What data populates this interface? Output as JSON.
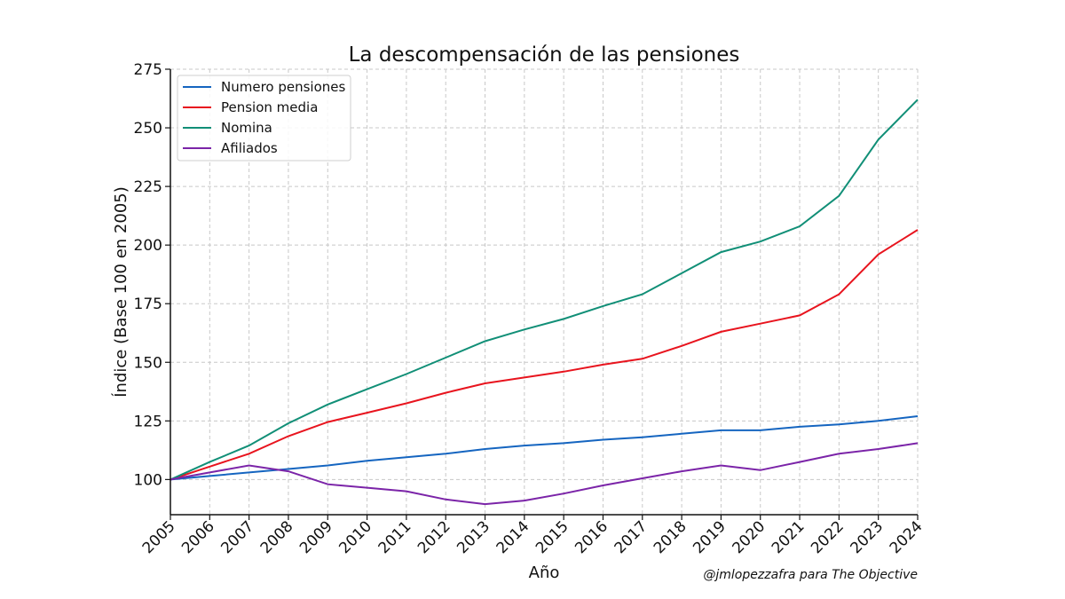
{
  "chart_data": {
    "type": "line",
    "title": "La descompensación de las pensiones",
    "xlabel": "Año",
    "ylabel": "Índice (Base 100 en 2005)",
    "annotation": "@jmlopezzafra para The Objective",
    "x": [
      2005,
      2006,
      2007,
      2008,
      2009,
      2010,
      2011,
      2012,
      2013,
      2014,
      2015,
      2016,
      2017,
      2018,
      2019,
      2020,
      2021,
      2022,
      2023,
      2024
    ],
    "xlim": [
      2005,
      2024
    ],
    "ylim": [
      85,
      275
    ],
    "yticks": [
      100,
      125,
      150,
      175,
      200,
      225,
      250,
      275
    ],
    "grid": true,
    "legend_position": "top-left",
    "series": [
      {
        "name": "Numero pensiones",
        "color": "#1565c0",
        "values": [
          100,
          101.5,
          103,
          104.5,
          106,
          108,
          109.5,
          111,
          113,
          114.5,
          115.5,
          117,
          118,
          119.5,
          121,
          121,
          122.5,
          123.5,
          125,
          127
        ]
      },
      {
        "name": "Pension media",
        "color": "#e8141e",
        "values": [
          100,
          105.5,
          111,
          118.5,
          124.5,
          128.5,
          132.5,
          137,
          141,
          143.5,
          146,
          149,
          151.5,
          157,
          163,
          166.5,
          170,
          179,
          196,
          206.5
        ]
      },
      {
        "name": "Nomina",
        "color": "#118f77",
        "values": [
          100,
          107.5,
          114.5,
          124,
          132,
          138.5,
          145,
          152,
          159,
          164,
          168.5,
          174,
          179,
          188,
          197,
          201.5,
          208,
          221,
          245,
          262
        ]
      },
      {
        "name": "Afiliados",
        "color": "#7b24a8",
        "values": [
          100,
          103,
          106,
          103.5,
          98,
          96.5,
          95,
          91.5,
          89.5,
          91,
          94,
          97.5,
          100.5,
          103.5,
          106,
          104,
          107.5,
          111,
          113,
          115.5
        ]
      }
    ]
  }
}
